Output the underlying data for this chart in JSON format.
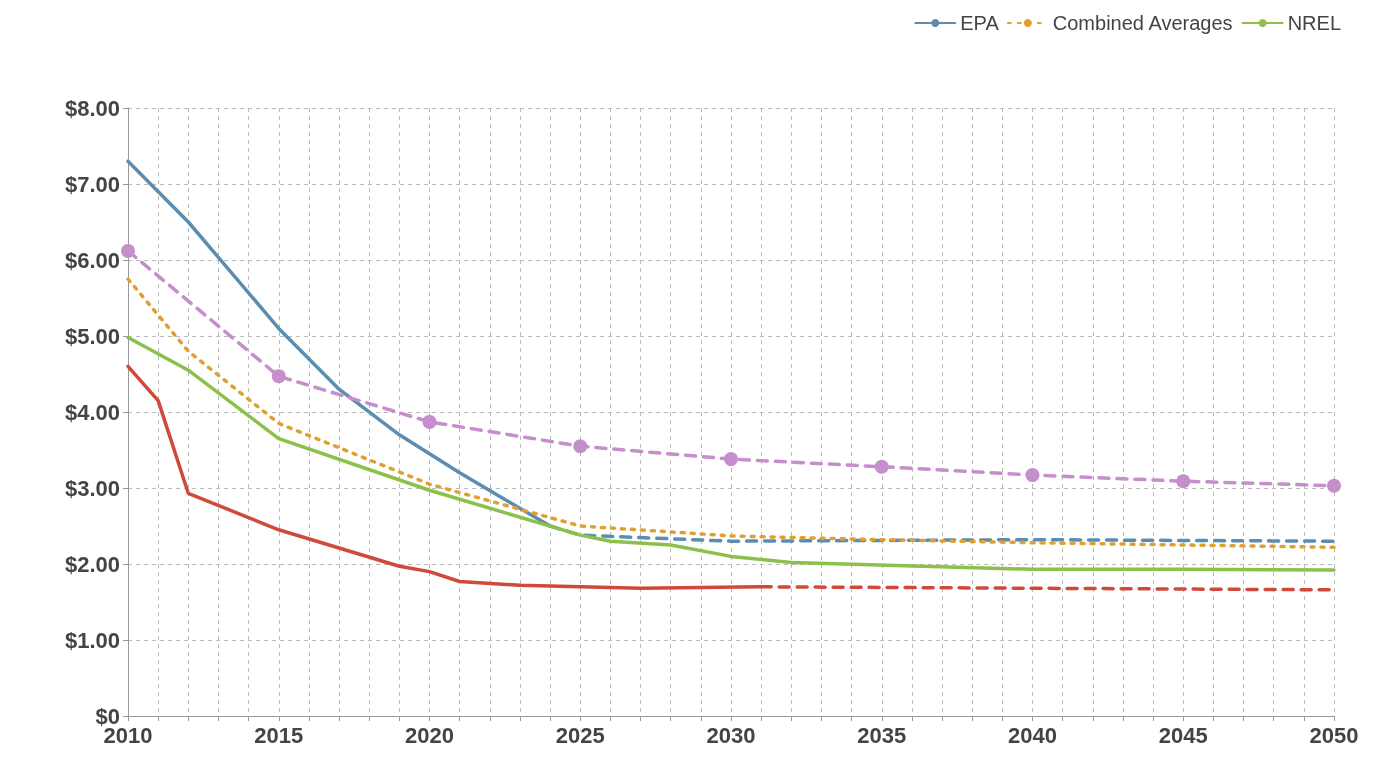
{
  "chart_data": {
    "type": "line",
    "legend": "top right",
    "grid": true,
    "line_style": "solid",
    "marker": "none",
    "xlim": [
      2010,
      2050
    ],
    "xticks": [
      2010,
      {
        "value": 2011,
        "label": null
      },
      {
        "value": 2012,
        "label": null
      },
      {
        "value": 2013,
        "label": null
      },
      {
        "value": 2014,
        "label": null
      },
      2015,
      {
        "value": 2016,
        "label": null
      },
      {
        "value": 2017,
        "label": null
      },
      {
        "value": 2018,
        "label": null
      },
      {
        "value": 2019,
        "label": null
      },
      2020,
      {
        "value": 2021,
        "label": null
      },
      {
        "value": 2022,
        "label": null
      },
      {
        "value": 2023,
        "label": null
      },
      {
        "value": 2024,
        "label": null
      },
      2025,
      {
        "value": 2026,
        "label": null
      },
      {
        "value": 2027,
        "label": null
      },
      {
        "value": 2028,
        "label": null
      },
      {
        "value": 2029,
        "label": null
      },
      2030,
      {
        "value": 2031,
        "label": null
      },
      {
        "value": 2032,
        "label": null
      },
      {
        "value": 2033,
        "label": null
      },
      {
        "value": 2034,
        "label": null
      },
      2035,
      {
        "value": 2036,
        "label": null
      },
      {
        "value": 2037,
        "label": null
      },
      {
        "value": 2038,
        "label": null
      },
      {
        "value": 2039,
        "label": null
      },
      2040,
      {
        "value": 2041,
        "label": null
      },
      {
        "value": 2042,
        "label": null
      },
      {
        "value": 2043,
        "label": null
      },
      {
        "value": 2044,
        "label": null
      },
      2045,
      {
        "value": 2046,
        "label": null
      },
      {
        "value": 2047,
        "label": null
      },
      {
        "value": 2048,
        "label": null
      },
      {
        "value": 2049,
        "label": null
      },
      2050
    ],
    "ylim": [
      0,
      8
    ],
    "yticks": [
      {
        "value": 0,
        "label": "$0"
      },
      {
        "value": 1,
        "label": "$1.00"
      },
      {
        "value": 2,
        "label": "$2.00"
      },
      {
        "value": 3,
        "label": "$3.00"
      },
      {
        "value": 4,
        "label": "$4.00"
      },
      {
        "value": 5,
        "label": "$5.00"
      },
      {
        "value": 6,
        "label": "$6.00"
      },
      {
        "value": 7,
        "label": "$7.00"
      },
      {
        "value": 8,
        "label": "$8.00"
      }
    ],
    "series": [
      {
        "color": "#d0493a",
        "x": [
          2010,
          2011,
          2012,
          2015,
          2019,
          2020,
          2021,
          2023,
          2025,
          2027,
          2031
        ],
        "values": [
          4.6,
          4.15,
          2.93,
          2.45,
          1.97,
          1.9,
          1.77,
          1.72,
          1.7,
          1.68,
          1.7
        ]
      },
      {
        "color": "#d0493a",
        "line_style": "dashed",
        "x": [
          2031,
          2050
        ],
        "values": [
          1.7,
          1.66
        ]
      },
      {
        "name": "EPA",
        "color": "#5b8db0",
        "x": [
          2010,
          2012,
          2015,
          2017,
          2019,
          2021,
          2024
        ],
        "values": [
          7.3,
          6.5,
          5.1,
          4.3,
          3.7,
          3.2,
          2.5
        ]
      },
      {
        "color": "#5b8db0",
        "line_style": "dashed",
        "x": [
          2024,
          2025,
          2030,
          2040,
          2050
        ],
        "values": [
          2.5,
          2.38,
          2.3,
          2.32,
          2.3
        ]
      },
      {
        "name": "Combined Averages",
        "color": "#e0a030",
        "line_style": "dotted",
        "x": [
          2010,
          2012,
          2015,
          2020,
          2025,
          2030,
          2035,
          2040,
          2045,
          2050
        ],
        "values": [
          5.75,
          4.8,
          3.85,
          3.05,
          2.5,
          2.37,
          2.32,
          2.28,
          2.25,
          2.22
        ]
      },
      {
        "name": "NREL",
        "color": "#8cc04a",
        "x": [
          2010,
          2012,
          2015,
          2020,
          2025,
          2026,
          2028,
          2030,
          2032,
          2040,
          2045,
          2050
        ],
        "values": [
          4.98,
          4.55,
          3.65,
          2.97,
          2.38,
          2.3,
          2.25,
          2.1,
          2.02,
          1.93,
          1.93,
          1.92
        ]
      },
      {
        "color": "#c58fcc",
        "line_style": "dashed",
        "marker": "circle",
        "x": [
          2010,
          2015,
          2020,
          2025,
          2030,
          2035,
          2040,
          2045,
          2050
        ],
        "values": [
          6.12,
          4.47,
          3.87,
          3.55,
          3.38,
          3.28,
          3.17,
          3.09,
          3.03
        ]
      }
    ]
  }
}
